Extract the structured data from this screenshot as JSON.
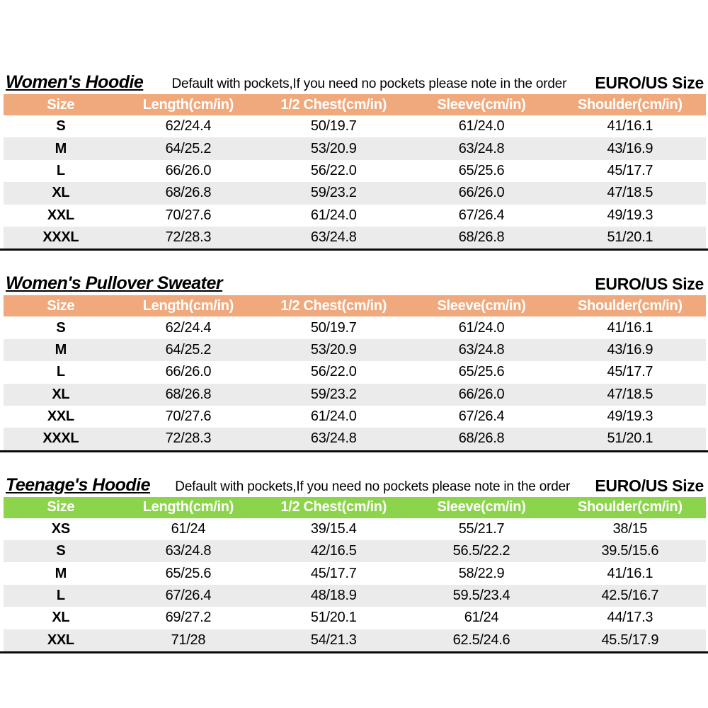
{
  "colors": {
    "page_background": "#ffffff",
    "orange_header": "#efa97d",
    "green_header": "#8cd44b",
    "stripe_row": "#ebebeb",
    "header_text": "#ffffff",
    "bottom_border": "#0a0a0a"
  },
  "shared": {
    "columns": [
      "Size",
      "Length(cm/in)",
      "1/2 Chest(cm/in)",
      "Sleeve(cm/in)",
      "Shoulder(cm/in)"
    ]
  },
  "tables": [
    {
      "title": "Women's Hoodie",
      "note": "Default with pockets,If you need no pockets please note in the order",
      "size_standard": "EURO/US Size",
      "header_color": "#efa97d",
      "rows": [
        [
          "S",
          "62/24.4",
          "50/19.7",
          "61/24.0",
          "41/16.1"
        ],
        [
          "M",
          "64/25.2",
          "53/20.9",
          "63/24.8",
          "43/16.9"
        ],
        [
          "L",
          "66/26.0",
          "56/22.0",
          "65/25.6",
          "45/17.7"
        ],
        [
          "XL",
          "68/26.8",
          "59/23.2",
          "66/26.0",
          "47/18.5"
        ],
        [
          "XXL",
          "70/27.6",
          "61/24.0",
          "67/26.4",
          "49/19.3"
        ],
        [
          "XXXL",
          "72/28.3",
          "63/24.8",
          "68/26.8",
          "51/20.1"
        ]
      ]
    },
    {
      "title": "Women's Pullover Sweater",
      "note": "",
      "size_standard": "EURO/US Size",
      "header_color": "#efa97d",
      "rows": [
        [
          "S",
          "62/24.4",
          "50/19.7",
          "61/24.0",
          "41/16.1"
        ],
        [
          "M",
          "64/25.2",
          "53/20.9",
          "63/24.8",
          "43/16.9"
        ],
        [
          "L",
          "66/26.0",
          "56/22.0",
          "65/25.6",
          "45/17.7"
        ],
        [
          "XL",
          "68/26.8",
          "59/23.2",
          "66/26.0",
          "47/18.5"
        ],
        [
          "XXL",
          "70/27.6",
          "61/24.0",
          "67/26.4",
          "49/19.3"
        ],
        [
          "XXXL",
          "72/28.3",
          "63/24.8",
          "68/26.8",
          "51/20.1"
        ]
      ]
    },
    {
      "title": "Teenage's Hoodie",
      "note": "Default with pockets,If you need no pockets please note in the order",
      "size_standard": "EURO/US Size",
      "header_color": "#8cd44b",
      "rows": [
        [
          "XS",
          "61/24",
          "39/15.4",
          "55/21.7",
          "38/15"
        ],
        [
          "S",
          "63/24.8",
          "42/16.5",
          "56.5/22.2",
          "39.5/15.6"
        ],
        [
          "M",
          "65/25.6",
          "45/17.7",
          "58/22.9",
          "41/16.1"
        ],
        [
          "L",
          "67/26.4",
          "48/18.9",
          "59.5/23.4",
          "42.5/16.7"
        ],
        [
          "XL",
          "69/27.2",
          "51/20.1",
          "61/24",
          "44/17.3"
        ],
        [
          "XXL",
          "71/28",
          "54/21.3",
          "62.5/24.6",
          "45.5/17.9"
        ]
      ]
    }
  ]
}
